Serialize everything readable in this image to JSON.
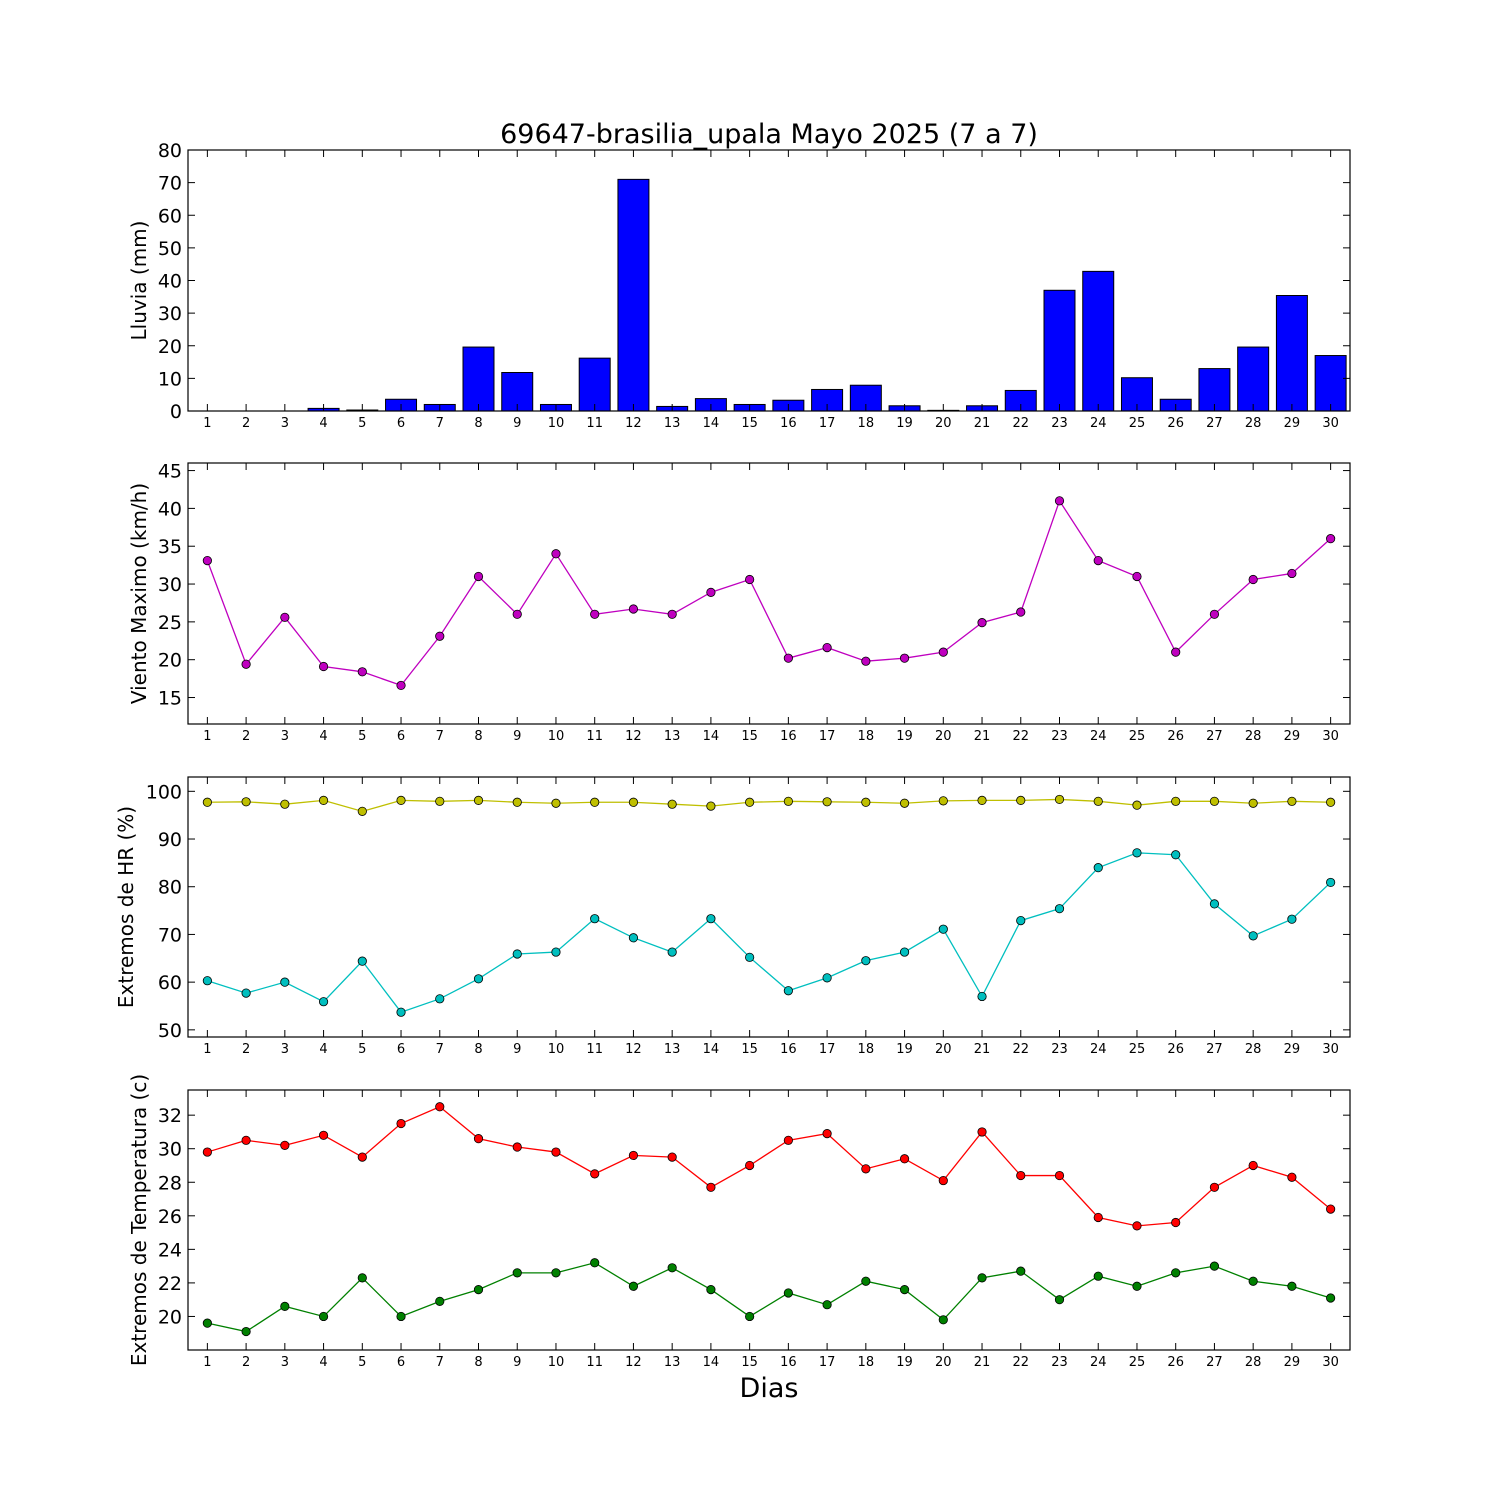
{
  "figure": {
    "title": "69647-brasilia_upala Mayo 2025  (7 a 7)",
    "xlabel": "Dias"
  },
  "chart_data": [
    {
      "type": "bar",
      "ylabel": "Lluvia (mm)",
      "ylim": [
        0,
        80
      ],
      "yticks": [
        0,
        10,
        20,
        30,
        40,
        50,
        60,
        70,
        80
      ],
      "grid": false,
      "x": [
        1,
        2,
        3,
        4,
        5,
        6,
        7,
        8,
        9,
        10,
        11,
        12,
        13,
        14,
        15,
        16,
        17,
        18,
        19,
        20,
        21,
        22,
        23,
        24,
        25,
        26,
        27,
        28,
        29,
        30
      ],
      "series": [
        {
          "color": "#0000ff",
          "values": [
            0,
            0,
            0,
            0.8,
            0.3,
            3.6,
            2.0,
            19.6,
            11.8,
            2.0,
            16.2,
            71.0,
            1.4,
            3.8,
            2.0,
            3.3,
            6.6,
            7.9,
            1.6,
            0.2,
            1.6,
            6.3,
            37.0,
            42.8,
            10.2,
            3.6,
            13.0,
            19.6,
            35.4,
            17.0
          ]
        }
      ]
    },
    {
      "type": "line",
      "ylabel": "Viento Maximo (km/h)",
      "ylim": [
        11.5,
        46
      ],
      "yticks": [
        15,
        20,
        25,
        30,
        35,
        40,
        45
      ],
      "grid": false,
      "x": [
        1,
        2,
        3,
        4,
        5,
        6,
        7,
        8,
        9,
        10,
        11,
        12,
        13,
        14,
        15,
        16,
        17,
        18,
        19,
        20,
        21,
        22,
        23,
        24,
        25,
        26,
        27,
        28,
        29,
        30
      ],
      "series": [
        {
          "color": "#bf00bf",
          "values": [
            33.1,
            19.4,
            25.6,
            19.1,
            18.4,
            16.6,
            23.1,
            31.0,
            26.0,
            34.0,
            26.0,
            26.7,
            26.0,
            28.9,
            30.6,
            20.2,
            21.6,
            19.8,
            20.2,
            21.0,
            24.9,
            26.3,
            41.0,
            33.1,
            31.0,
            21.0,
            26.0,
            30.6,
            31.4,
            36.0
          ]
        }
      ]
    },
    {
      "type": "line",
      "ylabel": "Extremos de HR (%)",
      "ylim": [
        48.5,
        103
      ],
      "yticks": [
        50,
        60,
        70,
        80,
        90,
        100
      ],
      "grid": false,
      "x": [
        1,
        2,
        3,
        4,
        5,
        6,
        7,
        8,
        9,
        10,
        11,
        12,
        13,
        14,
        15,
        16,
        17,
        18,
        19,
        20,
        21,
        22,
        23,
        24,
        25,
        26,
        27,
        28,
        29,
        30
      ],
      "series": [
        {
          "color": "#bfbf00",
          "values": [
            97.7,
            97.8,
            97.3,
            98.1,
            95.8,
            98.1,
            97.9,
            98.1,
            97.7,
            97.5,
            97.7,
            97.7,
            97.3,
            96.9,
            97.7,
            97.9,
            97.8,
            97.7,
            97.5,
            98.0,
            98.1,
            98.1,
            98.3,
            97.9,
            97.1,
            97.9,
            97.9,
            97.5,
            97.9,
            97.7
          ]
        },
        {
          "color": "#00bfbf",
          "values": [
            60.3,
            57.7,
            60.0,
            55.9,
            64.4,
            53.7,
            56.5,
            60.7,
            65.9,
            66.3,
            73.3,
            69.3,
            66.3,
            73.3,
            65.2,
            58.2,
            60.9,
            64.5,
            66.3,
            71.1,
            57.0,
            72.9,
            75.4,
            84.0,
            87.1,
            86.7,
            76.4,
            69.7,
            73.2,
            80.9
          ]
        }
      ]
    },
    {
      "type": "line",
      "ylabel": "Extremos de Temperatura (c)",
      "ylim": [
        18,
        33.5
      ],
      "yticks": [
        20,
        22,
        24,
        26,
        28,
        30,
        32
      ],
      "grid": false,
      "x": [
        1,
        2,
        3,
        4,
        5,
        6,
        7,
        8,
        9,
        10,
        11,
        12,
        13,
        14,
        15,
        16,
        17,
        18,
        19,
        20,
        21,
        22,
        23,
        24,
        25,
        26,
        27,
        28,
        29,
        30
      ],
      "series": [
        {
          "color": "#ff0000",
          "values": [
            29.8,
            30.5,
            30.2,
            30.8,
            29.5,
            31.5,
            32.5,
            30.6,
            30.1,
            29.8,
            28.5,
            29.6,
            29.5,
            27.7,
            29.0,
            30.5,
            30.9,
            28.8,
            29.4,
            28.1,
            31.0,
            28.4,
            28.4,
            25.9,
            25.4,
            25.6,
            27.7,
            29.0,
            28.3,
            26.4
          ]
        },
        {
          "color": "#008000",
          "values": [
            19.6,
            19.1,
            20.6,
            20.0,
            22.3,
            20.0,
            20.9,
            21.6,
            22.6,
            22.6,
            23.2,
            21.8,
            22.9,
            21.6,
            20.0,
            21.4,
            20.7,
            22.1,
            21.6,
            19.8,
            22.3,
            22.7,
            21.0,
            22.4,
            21.8,
            22.6,
            23.0,
            22.1,
            21.8,
            21.1
          ]
        }
      ]
    }
  ]
}
